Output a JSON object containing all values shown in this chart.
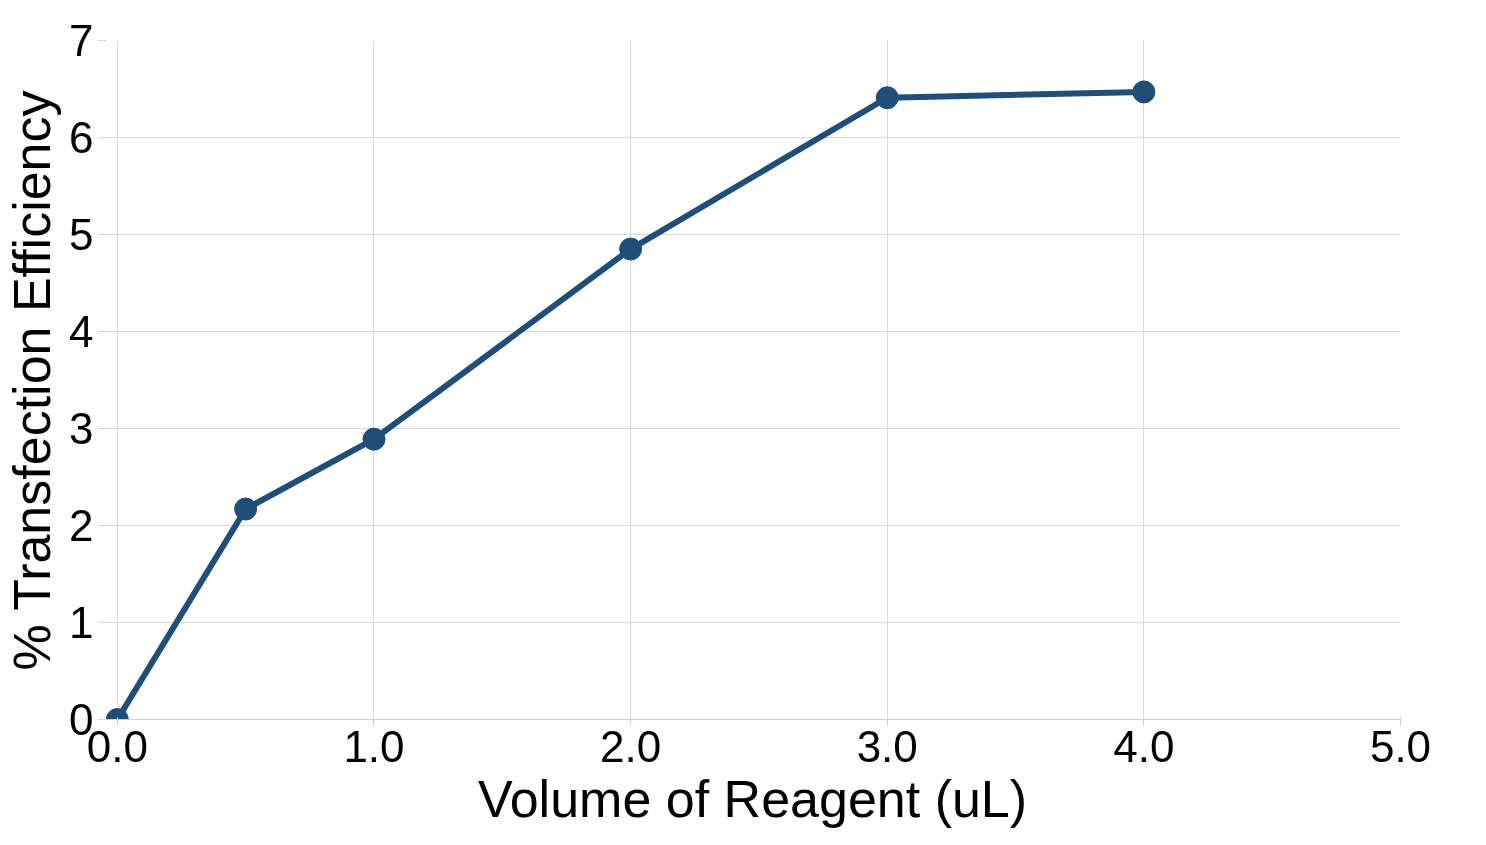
{
  "chart_data": {
    "type": "line",
    "xlabel": "Volume of Reagent (uL)",
    "ylabel": "% Transfection Efficiency",
    "x": [
      0,
      0.5,
      1,
      2,
      3,
      4
    ],
    "series": [
      {
        "color": "#1f4e79",
        "values": [
          0,
          2.17,
          2.89,
          4.85,
          6.41,
          6.47
        ]
      }
    ],
    "xlim": [
      -0.05,
      5
    ],
    "xticks": [
      {
        "value": 0,
        "label": "0.0"
      },
      {
        "value": 1,
        "label": "1.0"
      },
      {
        "value": 2,
        "label": "2.0"
      },
      {
        "value": 3,
        "label": "3.0"
      },
      {
        "value": 4,
        "label": "4.0"
      },
      {
        "value": 5,
        "label": "5.0"
      }
    ],
    "ylim": [
      0,
      7
    ],
    "yticks": [
      0,
      1,
      2,
      3,
      4,
      5,
      6,
      7
    ],
    "grid": true,
    "marker": "circle",
    "line_style": "solid"
  }
}
